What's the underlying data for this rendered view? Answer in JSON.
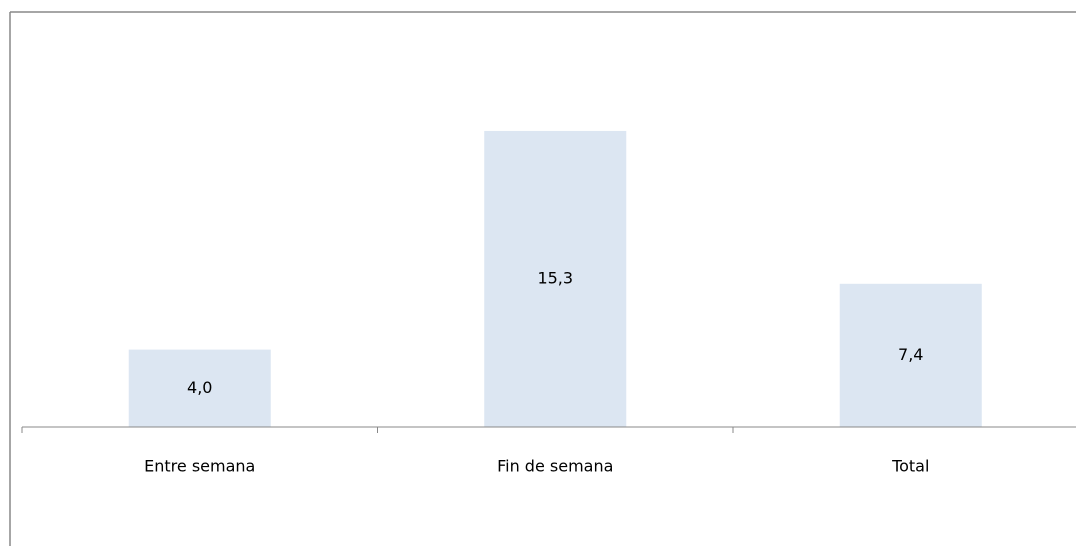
{
  "chart_data": {
    "type": "bar",
    "categories": [
      "Entre semana",
      "Fin de semana",
      "Total"
    ],
    "values": [
      4.0,
      15.3,
      7.4
    ],
    "value_labels": [
      "4,0",
      "15,3",
      "7,4"
    ],
    "color": "#dce6f2",
    "ylim": [
      0,
      20
    ]
  }
}
